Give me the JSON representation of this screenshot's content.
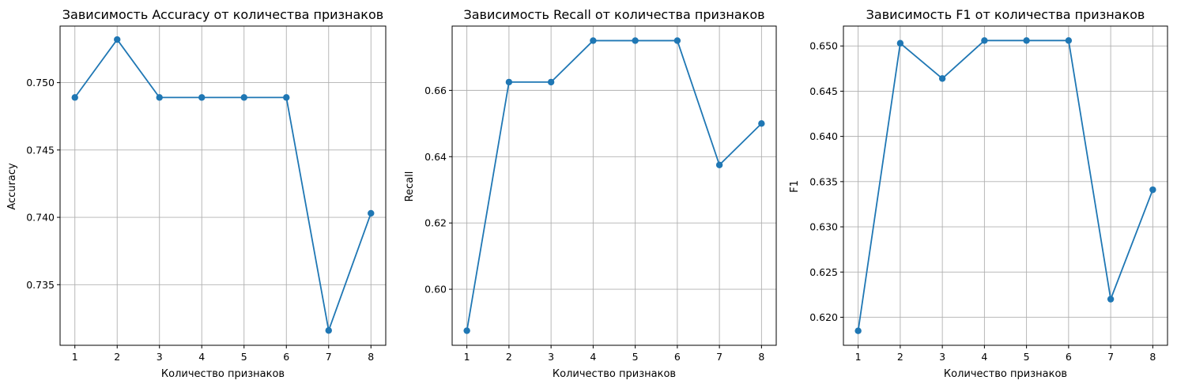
{
  "chart_data": [
    {
      "type": "line",
      "title": "Зависимость Accuracy от количества признаков",
      "xlabel": "Количество признаков",
      "ylabel": "Accuracy",
      "x": [
        1,
        2,
        3,
        4,
        5,
        6,
        7,
        8
      ],
      "values": [
        0.7489,
        0.7532,
        0.7489,
        0.7489,
        0.7489,
        0.7489,
        0.7316,
        0.7403
      ],
      "xlim": [
        0.65,
        8.35
      ],
      "ylim": [
        0.7305,
        0.7542
      ],
      "xticks": [
        1,
        2,
        3,
        4,
        5,
        6,
        7,
        8
      ],
      "xtick_labels": [
        "1",
        "2",
        "3",
        "4",
        "5",
        "6",
        "7",
        "8"
      ],
      "yticks": [
        0.735,
        0.74,
        0.745,
        0.75
      ],
      "ytick_labels": [
        "0.735",
        "0.740",
        "0.745",
        "0.750"
      ],
      "grid": true,
      "color": "#1f77b4"
    },
    {
      "type": "line",
      "title": "Зависимость Recall от количества признаков",
      "xlabel": "Количество признаков",
      "ylabel": "Recall",
      "x": [
        1,
        2,
        3,
        4,
        5,
        6,
        7,
        8
      ],
      "values": [
        0.5875,
        0.6625,
        0.6625,
        0.675,
        0.675,
        0.675,
        0.6375,
        0.65
      ],
      "xlim": [
        0.65,
        8.35
      ],
      "ylim": [
        0.5831,
        0.6794
      ],
      "xticks": [
        1,
        2,
        3,
        4,
        5,
        6,
        7,
        8
      ],
      "xtick_labels": [
        "1",
        "2",
        "3",
        "4",
        "5",
        "6",
        "7",
        "8"
      ],
      "yticks": [
        0.6,
        0.62,
        0.64,
        0.66
      ],
      "ytick_labels": [
        "0.60",
        "0.62",
        "0.64",
        "0.66"
      ],
      "grid": true,
      "color": "#1f77b4"
    },
    {
      "type": "line",
      "title": "Зависимость F1 от количества признаков",
      "xlabel": "Количество признаков",
      "ylabel": "F1",
      "x": [
        1,
        2,
        3,
        4,
        5,
        6,
        7,
        8
      ],
      "values": [
        0.6185,
        0.6503,
        0.6464,
        0.6506,
        0.6506,
        0.6506,
        0.622,
        0.6341
      ],
      "xlim": [
        0.65,
        8.35
      ],
      "ylim": [
        0.6169,
        0.6522
      ],
      "xticks": [
        1,
        2,
        3,
        4,
        5,
        6,
        7,
        8
      ],
      "xtick_labels": [
        "1",
        "2",
        "3",
        "4",
        "5",
        "6",
        "7",
        "8"
      ],
      "yticks": [
        0.62,
        0.625,
        0.63,
        0.635,
        0.64,
        0.645,
        0.65
      ],
      "ytick_labels": [
        "0.620",
        "0.625",
        "0.630",
        "0.635",
        "0.640",
        "0.645",
        "0.650"
      ],
      "grid": true,
      "color": "#1f77b4"
    }
  ]
}
